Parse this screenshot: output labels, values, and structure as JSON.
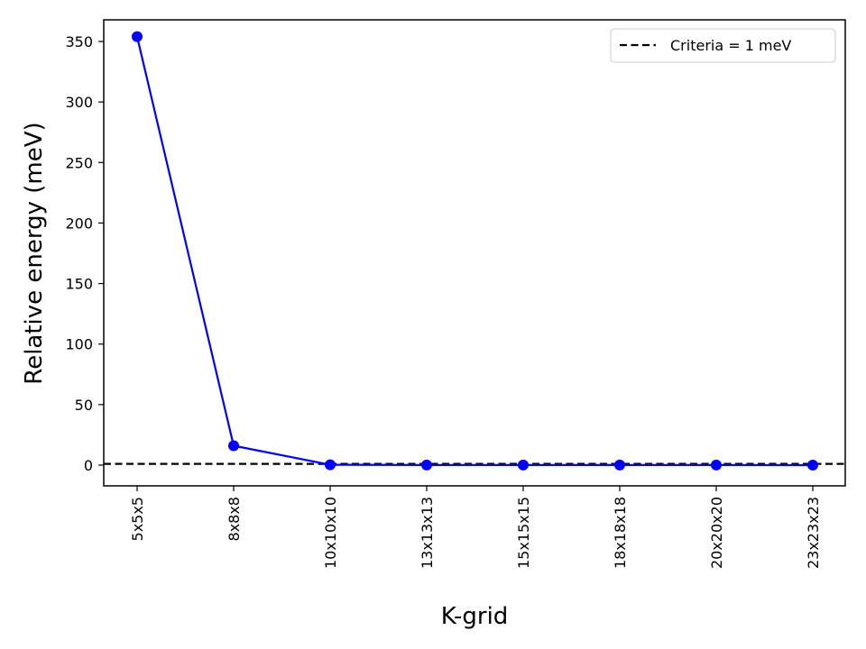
{
  "chart_data": {
    "type": "line",
    "xlabel": "K-grid",
    "ylabel": "Relative energy (meV)",
    "categories": [
      "5x5x5",
      "8x8x8",
      "10x10x10",
      "13x13x13",
      "15x15x15",
      "18x18x18",
      "20x20x20",
      "23x23x23"
    ],
    "series": [
      {
        "values": [
          354,
          16,
          0.3,
          0.1,
          0.1,
          0.1,
          0.1,
          0.0
        ],
        "color": "#0000ff",
        "marker": "circle"
      }
    ],
    "reference_line": {
      "name": "Criteria = 1 meV",
      "y": 1,
      "style": "dashed",
      "color": "#000000"
    },
    "ylim": [
      -18,
      372
    ],
    "yticks": [
      0,
      50,
      100,
      150,
      200,
      250,
      300,
      350
    ],
    "grid": false,
    "legend_position": "top-right"
  }
}
